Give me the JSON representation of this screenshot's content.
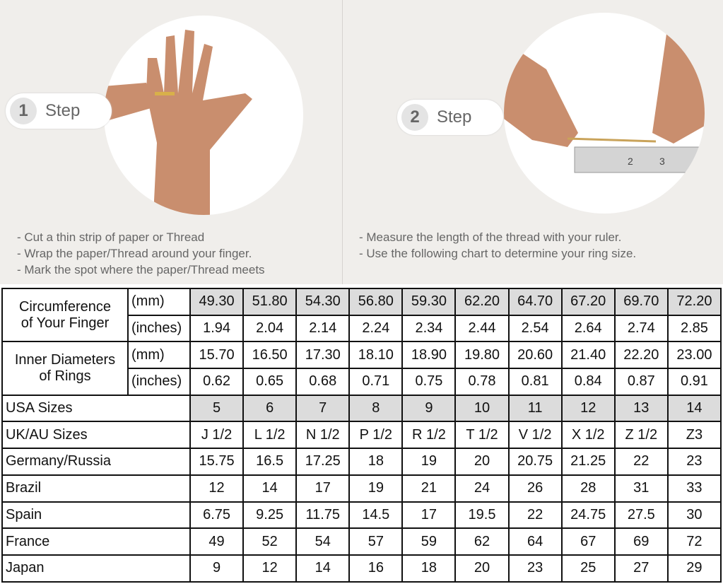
{
  "steps": [
    {
      "number": "1",
      "label": "Step",
      "notes": [
        "- Cut a thin strip of paper or Thread",
        "- Wrap the paper/Thread around your finger.",
        "- Mark the spot where the paper/Thread meets"
      ]
    },
    {
      "number": "2",
      "label": "Step",
      "notes": [
        "- Measure the length of the thread with your ruler.",
        "- Use the following chart to determine your ring size."
      ]
    }
  ],
  "table": {
    "circumference": {
      "label_line1": "Circumference",
      "label_line2": "of Your Finger",
      "mm_unit": "(mm)",
      "inch_unit": "(inches)",
      "mm": [
        "49.30",
        "51.80",
        "54.30",
        "56.80",
        "59.30",
        "62.20",
        "64.70",
        "67.20",
        "69.70",
        "72.20"
      ],
      "inches": [
        "1.94",
        "2.04",
        "2.14",
        "2.24",
        "2.34",
        "2.44",
        "2.54",
        "2.64",
        "2.74",
        "2.85"
      ]
    },
    "inner_diameter": {
      "label_line1": "Inner Diameters",
      "label_line2": "of Rings",
      "mm_unit": "(mm)",
      "inch_unit": "(inches)",
      "mm": [
        "15.70",
        "16.50",
        "17.30",
        "18.10",
        "18.90",
        "19.80",
        "20.60",
        "21.40",
        "22.20",
        "23.00"
      ],
      "inches": [
        "0.62",
        "0.65",
        "0.68",
        "0.71",
        "0.75",
        "0.78",
        "0.81",
        "0.84",
        "0.87",
        "0.91"
      ]
    },
    "rows": [
      {
        "label": "USA Sizes",
        "values": [
          "5",
          "6",
          "7",
          "8",
          "9",
          "10",
          "11",
          "12",
          "13",
          "14"
        ],
        "shaded": true
      },
      {
        "label": "UK/AU Sizes",
        "values": [
          "J 1/2",
          "L 1/2",
          "N 1/2",
          "P 1/2",
          "R 1/2",
          "T 1/2",
          "V 1/2",
          "X 1/2",
          "Z 1/2",
          "Z3"
        ]
      },
      {
        "label": "Germany/Russia",
        "values": [
          "15.75",
          "16.5",
          "17.25",
          "18",
          "19",
          "20",
          "20.75",
          "21.25",
          "22",
          "23"
        ]
      },
      {
        "label": "Brazil",
        "values": [
          "12",
          "14",
          "17",
          "19",
          "21",
          "24",
          "26",
          "28",
          "31",
          "33"
        ]
      },
      {
        "label": "Spain",
        "values": [
          "6.75",
          "9.25",
          "11.75",
          "14.5",
          "17",
          "19.5",
          "22",
          "24.75",
          "27.5",
          "30"
        ]
      },
      {
        "label": "France",
        "values": [
          "49",
          "52",
          "54",
          "57",
          "59",
          "62",
          "64",
          "67",
          "69",
          "72"
        ]
      },
      {
        "label": "Japan",
        "values": [
          "9",
          "12",
          "14",
          "16",
          "18",
          "20",
          "23",
          "25",
          "27",
          "29"
        ]
      }
    ]
  }
}
